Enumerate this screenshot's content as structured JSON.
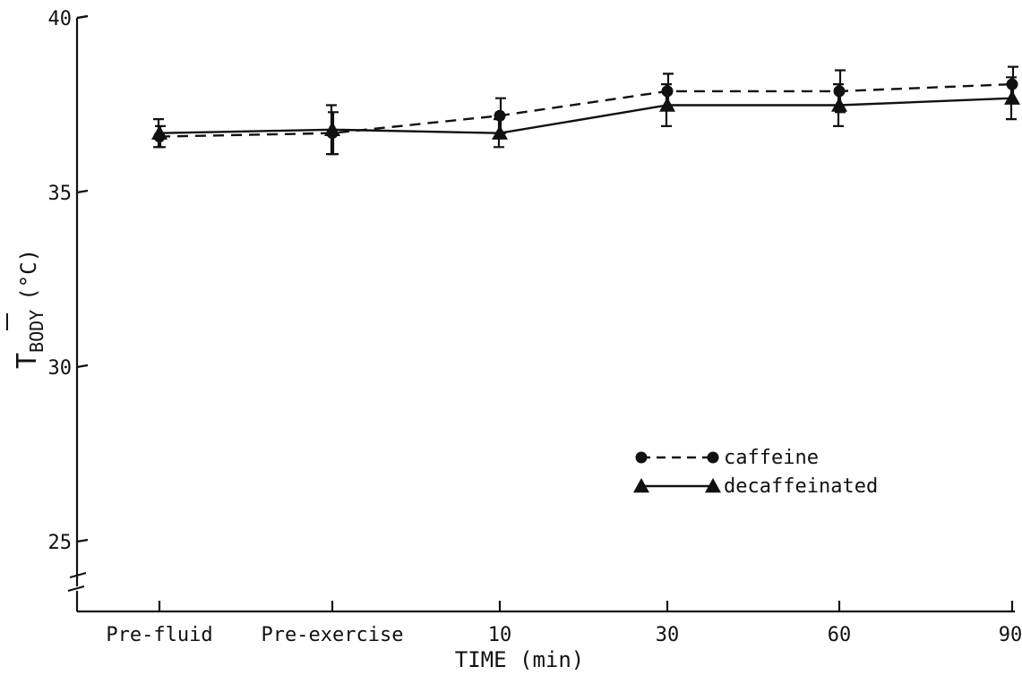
{
  "chart_data": {
    "type": "line",
    "title": "",
    "xlabel": "TIME (min)",
    "ylabel": {
      "main": "T",
      "subscript": "BODY",
      "unit": "(°C)"
    },
    "categories": [
      "Pre-fluid",
      "Pre-exercise",
      "10",
      "30",
      "60",
      "90"
    ],
    "y_ticks": [
      "40",
      "35",
      "30",
      "25"
    ],
    "ylim": [
      23,
      40
    ],
    "y_axis_break": true,
    "grid": false,
    "legend_position": "bottom-right",
    "series": [
      {
        "name": "caffeine",
        "marker": "circle",
        "line_style": "dashed",
        "values": [
          36.6,
          36.7,
          37.2,
          37.9,
          37.9,
          38.1
        ],
        "error": [
          0.3,
          0.6,
          0.5,
          0.5,
          0.6,
          0.5
        ]
      },
      {
        "name": "decaffeinated",
        "marker": "triangle",
        "line_style": "solid",
        "values": [
          36.7,
          36.8,
          36.7,
          37.5,
          37.5,
          37.7
        ],
        "error": [
          0.4,
          0.7,
          0.4,
          0.6,
          0.6,
          0.6
        ]
      }
    ]
  }
}
